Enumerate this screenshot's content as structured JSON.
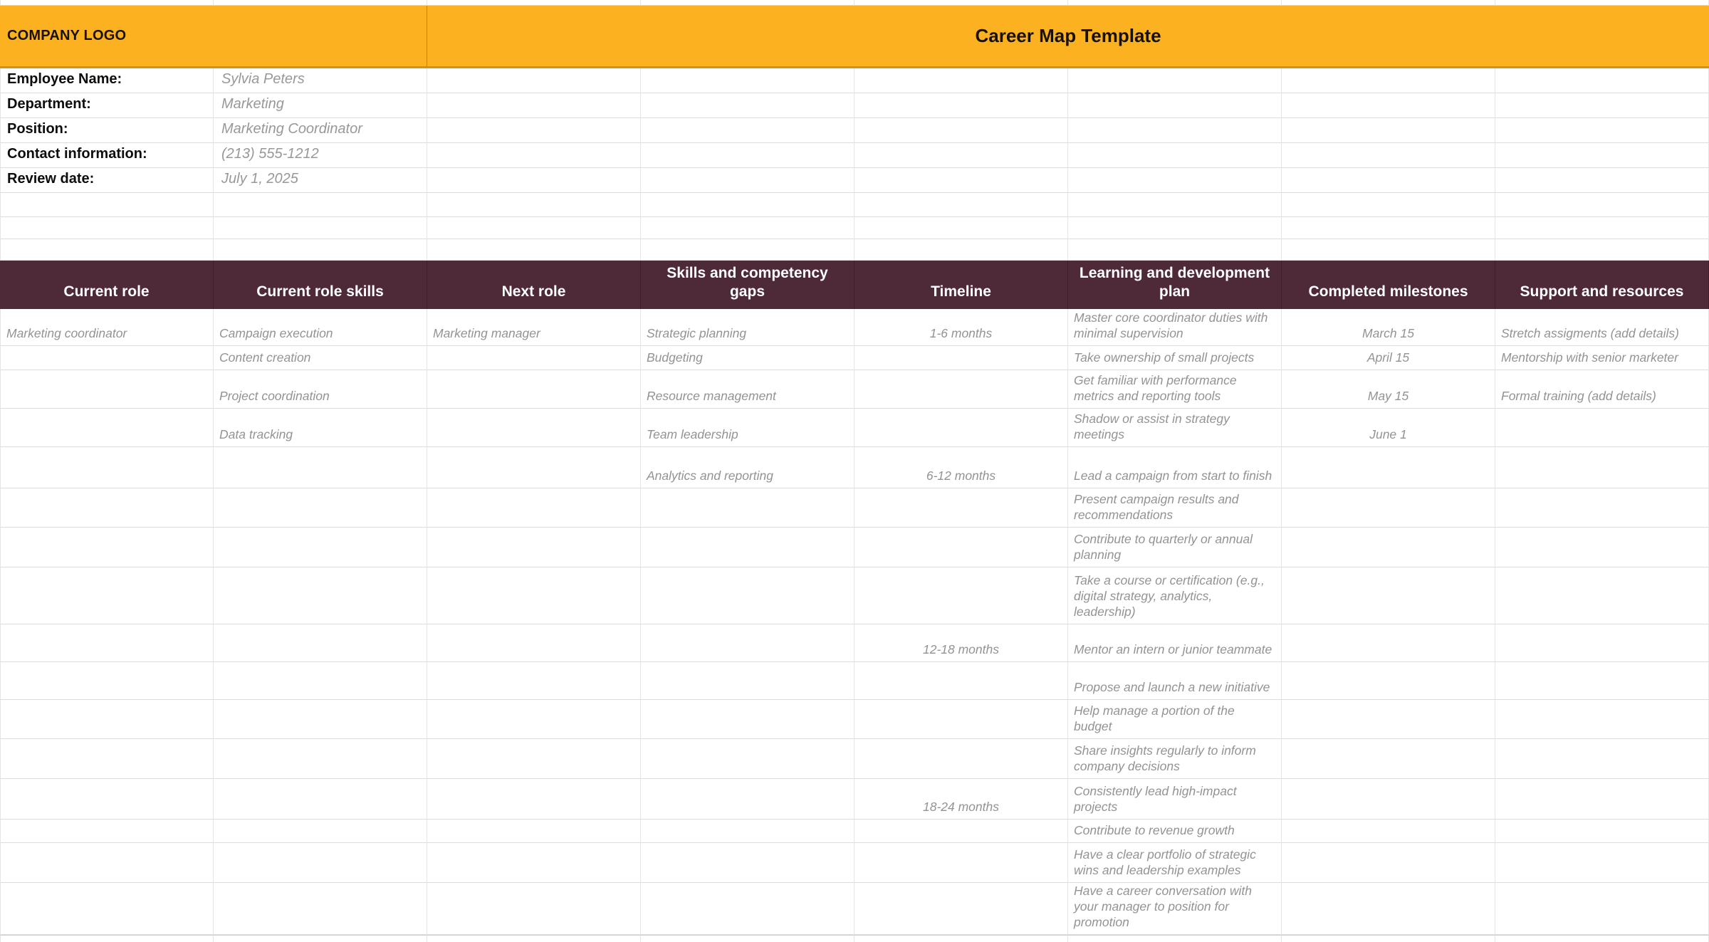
{
  "banner": {
    "logo_text": "COMPANY LOGO",
    "title": "Career Map Template"
  },
  "employee_info": [
    {
      "label": "Employee Name:",
      "value": "Sylvia Peters"
    },
    {
      "label": "Department:",
      "value": "Marketing"
    },
    {
      "label": "Position:",
      "value": "Marketing Coordinator"
    },
    {
      "label": "Contact information:",
      "value": "(213) 555-1212"
    },
    {
      "label": "Review date:",
      "value": "July 1, 2025"
    }
  ],
  "table": {
    "headers": [
      "Current role",
      "Current role skills",
      "Next role",
      "Skills and competency gaps",
      "Timeline",
      "Learning and development plan",
      "Completed milestones",
      "Support and resources"
    ],
    "rows": [
      [
        "Marketing coordinator",
        "Campaign execution",
        "Marketing manager",
        "Strategic planning",
        "1-6 months",
        "Master core coordinator duties with minimal supervision",
        "March 15",
        "Stretch assigments (add details)"
      ],
      [
        "",
        "Content creation",
        "",
        "Budgeting",
        "",
        "Take ownership of small projects",
        "April 15",
        "Mentorship with senior marketer"
      ],
      [
        "",
        "Project coordination",
        "",
        "Resource management",
        "",
        "Get familiar with performance metrics and reporting tools",
        "May 15",
        "Formal training (add details)"
      ],
      [
        "",
        "Data tracking",
        "",
        "Team leadership",
        "",
        "Shadow or assist in strategy meetings",
        "June 1",
        ""
      ],
      [
        "",
        "",
        "",
        "Analytics and reporting",
        "6-12 months",
        "Lead a campaign from start to finish",
        "",
        ""
      ],
      [
        "",
        "",
        "",
        "",
        "",
        "Present campaign results and recommendations",
        "",
        ""
      ],
      [
        "",
        "",
        "",
        "",
        "",
        "Contribute to quarterly or annual planning",
        "",
        ""
      ],
      [
        "",
        "",
        "",
        "",
        "",
        "Take a course or certification (e.g., digital strategy, analytics, leadership)",
        "",
        ""
      ],
      [
        "",
        "",
        "",
        "",
        "12-18 months",
        "Mentor an intern or junior teammate",
        "",
        ""
      ],
      [
        "",
        "",
        "",
        "",
        "",
        "Propose and launch a new initiative",
        "",
        ""
      ],
      [
        "",
        "",
        "",
        "",
        "",
        "Help manage a portion of the budget",
        "",
        ""
      ],
      [
        "",
        "",
        "",
        "",
        "",
        "Share insights regularly to inform company decisions",
        "",
        ""
      ],
      [
        "",
        "",
        "",
        "",
        "18-24 months",
        "Consistently lead high-impact projects",
        "",
        ""
      ],
      [
        "",
        "",
        "",
        "",
        "",
        "Contribute to revenue growth",
        "",
        ""
      ],
      [
        "",
        "",
        "",
        "",
        "",
        "Have a clear portfolio of strategic wins and leadership examples",
        "",
        ""
      ],
      [
        "",
        "",
        "",
        "",
        "",
        "Have a career conversation with your manager to position for promotion",
        "",
        ""
      ]
    ]
  },
  "colors": {
    "banner_bg": "#FCB120",
    "banner_border": "#D2921A",
    "header_bg": "#4E2A38",
    "header_text": "#FFFFFF",
    "label_text": "#0D0D0D",
    "value_text": "#98989B",
    "data_text": "#939396",
    "gridline": "#E4E4E4"
  }
}
